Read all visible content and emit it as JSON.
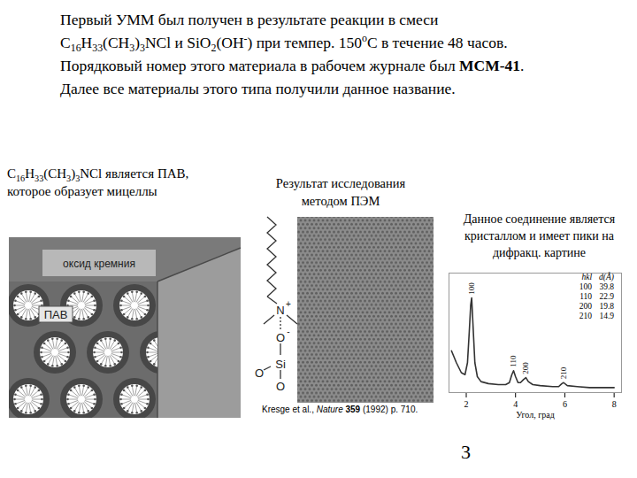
{
  "header": {
    "lines": [
      [
        "Первый УММ был получен в результате реакции в смеси"
      ],
      [
        "C",
        {
          "sub": "16"
        },
        "H",
        {
          "sub": "33"
        },
        "(CH",
        {
          "sub": "3"
        },
        ")",
        {
          "sub": "3"
        },
        "NCl и SiO",
        {
          "sub": "2"
        },
        "(OH",
        {
          "sup": "-"
        },
        ") при темпер. 150",
        {
          "sup": "o"
        },
        "C в течение 48 часов."
      ],
      [
        "Порядковый номер этого материала в рабочем журнале был ",
        {
          "b": "MCM-41"
        },
        "."
      ],
      [
        "Далее все материалы этого типа получили данное название."
      ]
    ]
  },
  "left_panel": {
    "caption": [
      [
        "C",
        {
          "sub": "16"
        },
        "H",
        {
          "sub": "33"
        },
        "(CH",
        {
          "sub": "3"
        },
        ")",
        {
          "sub": "3"
        },
        "NCl является ПАВ,"
      ],
      [
        "которое образует мицеллы"
      ]
    ],
    "labels": {
      "silica": "оксид кремния",
      "surfactant": "ПАВ"
    }
  },
  "middle_panel": {
    "caption": [
      "Результат исследования",
      "методом ПЭМ"
    ],
    "molecule_labels": [
      "N",
      "+",
      "O",
      "-",
      "Si",
      "O",
      "O"
    ],
    "citation": [
      "Kresge et al., ",
      {
        "i": "Nature"
      },
      " ",
      {
        "b": "359"
      },
      " (1992) p. 710."
    ]
  },
  "right_panel": {
    "caption": [
      "Данное соединение является",
      "кристаллом и имеет пики на",
      "дифракц. картине"
    ]
  },
  "chart_data": {
    "type": "line",
    "x_label": "Угол, град",
    "x": [
      1.4,
      1.6,
      1.8,
      1.95,
      2.05,
      2.12,
      2.18,
      2.22,
      2.27,
      2.35,
      2.45,
      2.6,
      2.9,
      3.3,
      3.6,
      3.75,
      3.85,
      3.92,
      4.0,
      4.1,
      4.2,
      4.32,
      4.42,
      4.52,
      4.7,
      5.0,
      5.5,
      5.75,
      5.88,
      5.95,
      6.1,
      6.5,
      7.0,
      7.5,
      8.0
    ],
    "values": [
      42,
      30,
      20,
      18,
      30,
      60,
      88,
      95,
      70,
      30,
      16,
      11,
      9,
      8,
      8,
      10,
      18,
      22,
      16,
      10,
      10,
      13,
      15,
      11,
      8,
      7,
      6,
      6,
      9,
      10,
      7,
      6,
      5,
      5,
      5
    ],
    "color": "#333333",
    "xlim": [
      1.3,
      8.3
    ],
    "xticks": [
      2,
      4,
      6,
      8
    ],
    "ylim": [
      0,
      120
    ],
    "tick_labels": "x",
    "grid": false,
    "annotations": [
      {
        "text": "100",
        "x": 2.22,
        "y": 95
      },
      {
        "text": "110",
        "x": 3.92,
        "y": 22
      },
      {
        "text": "200",
        "x": 4.42,
        "y": 15
      },
      {
        "text": "210",
        "x": 5.95,
        "y": 10
      }
    ],
    "table": {
      "header": [
        "hkl",
        "d(Å)"
      ],
      "rows": [
        [
          "100",
          39.8
        ],
        [
          "110",
          22.9
        ],
        [
          "200",
          19.8
        ],
        [
          "210",
          14.9
        ]
      ]
    }
  },
  "page_number": "3"
}
